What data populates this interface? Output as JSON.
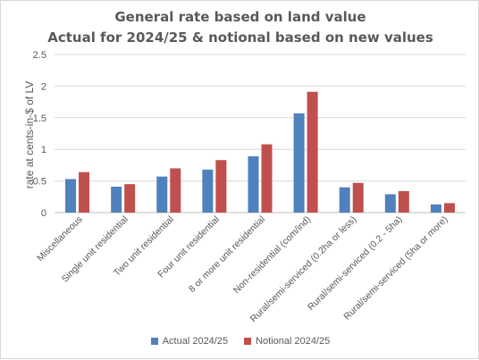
{
  "chart_data": {
    "type": "bar",
    "title": "General rate based on land value",
    "subtitle": "Actual for 2024/25 & notional based on new values",
    "xlabel": "",
    "ylabel": "rate at cents-in-$ of LV",
    "ylim": [
      0,
      2.5
    ],
    "yticks": [
      "0",
      "0.5",
      "1",
      "1.5",
      "2",
      "2.5"
    ],
    "grid": true,
    "legend_position": "bottom",
    "categories": [
      "Miscellaneous",
      "Single unit residential",
      "Two unit residential",
      "Four unit residential",
      "8 or more unit residential",
      "Non-residential (com/ind)",
      "Rural/semi-serviced (0.2ha or less)",
      "Rural/semi-serviced (0.2 - 5ha)",
      "Rural/semi-serviced (5ha or more)"
    ],
    "series": [
      {
        "name": "Actual 2024/25",
        "color": "#4f81bd",
        "values": [
          0.53,
          0.41,
          0.57,
          0.68,
          0.89,
          1.57,
          0.4,
          0.29,
          0.13
        ]
      },
      {
        "name": "Notional 2024/25",
        "color": "#c0504d",
        "values": [
          0.64,
          0.45,
          0.7,
          0.83,
          1.08,
          1.91,
          0.47,
          0.34,
          0.15
        ]
      }
    ]
  }
}
